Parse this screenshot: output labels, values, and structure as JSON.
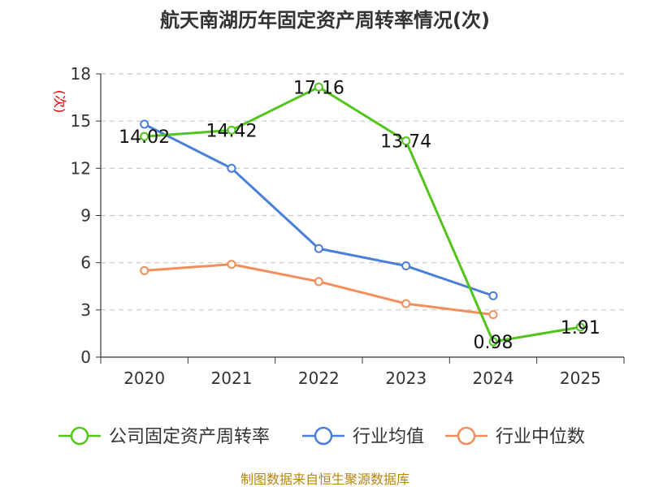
{
  "chart_data": {
    "type": "line",
    "title": "航天南湖历年固定资产周转率情况(次)",
    "ylabel": "(次)",
    "xlabel": "",
    "categories": [
      "2020",
      "2021",
      "2022",
      "2023",
      "2024",
      "2025"
    ],
    "ylim": [
      0,
      18
    ],
    "yticks": [
      0,
      3,
      6,
      9,
      12,
      15,
      18
    ],
    "grid": true,
    "series": [
      {
        "name": "公司固定资产周转率",
        "color": "#52c41a",
        "values": [
          14.02,
          14.42,
          17.16,
          13.74,
          0.98,
          1.91
        ],
        "labels": [
          "14.02",
          "14.42",
          "17.16",
          "13.74",
          "0.98",
          "1.91"
        ]
      },
      {
        "name": "行业均值",
        "color": "#4a7fd9",
        "values": [
          14.8,
          12.0,
          6.9,
          5.8,
          3.9,
          null
        ]
      },
      {
        "name": "行业中位数",
        "color": "#f28e5b",
        "values": [
          5.5,
          5.9,
          4.8,
          3.4,
          2.7,
          null
        ]
      }
    ],
    "legend_position": "bottom",
    "source": "制图数据来自恒生聚源数据库"
  }
}
